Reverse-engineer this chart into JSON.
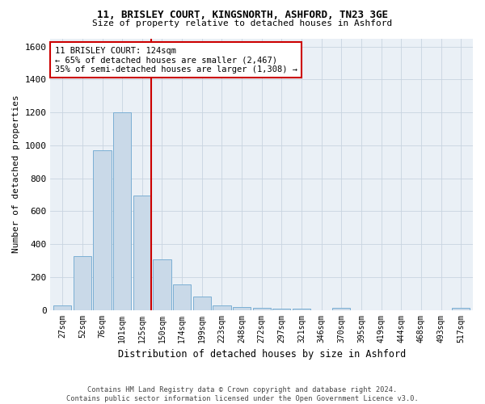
{
  "title1": "11, BRISLEY COURT, KINGSNORTH, ASHFORD, TN23 3GE",
  "title2": "Size of property relative to detached houses in Ashford",
  "xlabel": "Distribution of detached houses by size in Ashford",
  "ylabel": "Number of detached properties",
  "bar_labels": [
    "27sqm",
    "52sqm",
    "76sqm",
    "101sqm",
    "125sqm",
    "150sqm",
    "174sqm",
    "199sqm",
    "223sqm",
    "248sqm",
    "272sqm",
    "297sqm",
    "321sqm",
    "346sqm",
    "370sqm",
    "395sqm",
    "419sqm",
    "444sqm",
    "468sqm",
    "493sqm",
    "517sqm"
  ],
  "bar_values": [
    25,
    325,
    970,
    1200,
    695,
    305,
    155,
    80,
    25,
    18,
    15,
    10,
    10,
    0,
    12,
    0,
    0,
    0,
    0,
    0,
    12
  ],
  "bar_color": "#c9d9e8",
  "bar_edgecolor": "#7bafd4",
  "vline_bar_index": 4,
  "vline_color": "#cc0000",
  "annotation_text": "11 BRISLEY COURT: 124sqm\n← 65% of detached houses are smaller (2,467)\n35% of semi-detached houses are larger (1,308) →",
  "annotation_box_facecolor": "#ffffff",
  "annotation_box_edgecolor": "#cc0000",
  "ylim": [
    0,
    1650
  ],
  "yticks": [
    0,
    200,
    400,
    600,
    800,
    1000,
    1200,
    1400,
    1600
  ],
  "footnote": "Contains HM Land Registry data © Crown copyright and database right 2024.\nContains public sector information licensed under the Open Government Licence v3.0.",
  "background_color": "#ffffff",
  "axes_facecolor": "#eaf0f6",
  "grid_color": "#c8d4e0"
}
